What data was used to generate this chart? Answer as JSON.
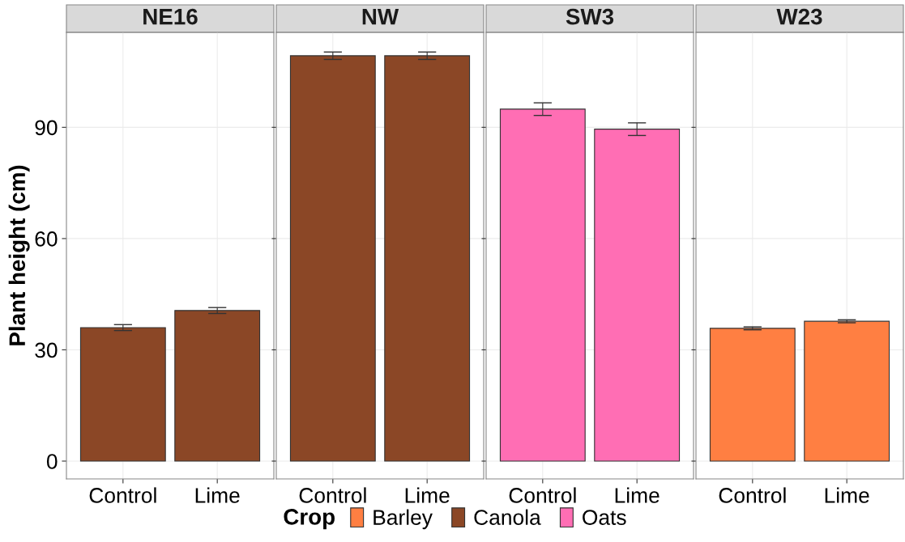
{
  "chart_data": [
    {
      "type": "bar",
      "title": "NE16",
      "ylabel": "Plant height (cm)",
      "categories": [
        "Control",
        "Lime"
      ],
      "series": [
        {
          "name": "Canola",
          "color": "#8b4726",
          "values": [
            36.0,
            40.6
          ],
          "errors": [
            0.8,
            0.8
          ]
        }
      ],
      "ylim": [
        -4.8,
        115.6
      ],
      "yticks": [
        0,
        30,
        60,
        90
      ],
      "grid": true,
      "legend": "bottom",
      "legend_title": "Crop"
    },
    {
      "type": "bar",
      "title": "NW",
      "categories": [
        "Control",
        "Lime"
      ],
      "series": [
        {
          "name": "Canola",
          "color": "#8b4726",
          "values": [
            109.3,
            109.3
          ],
          "errors": [
            1.0,
            1.0
          ]
        }
      ],
      "ylim": [
        -4.8,
        115.6
      ],
      "yticks": [
        0,
        30,
        60,
        90
      ],
      "grid": true,
      "tick_labels": "x"
    },
    {
      "type": "bar",
      "title": "SW3",
      "categories": [
        "Control",
        "Lime"
      ],
      "series": [
        {
          "name": "Oats",
          "color": "#ff6eb4",
          "values": [
            94.9,
            89.5
          ],
          "errors": [
            1.7,
            1.7
          ]
        }
      ],
      "ylim": [
        -4.8,
        115.6
      ],
      "yticks": [
        0,
        30,
        60,
        90
      ],
      "grid": true,
      "tick_labels": "x"
    },
    {
      "type": "bar",
      "title": "W23",
      "categories": [
        "Control",
        "Lime"
      ],
      "series": [
        {
          "name": "Barley",
          "color": "#ff7f42",
          "values": [
            35.8,
            37.7
          ],
          "errors": [
            0.4,
            0.4
          ]
        }
      ],
      "ylim": [
        -4.8,
        115.6
      ],
      "yticks": [
        0,
        30,
        60,
        90
      ],
      "grid": true,
      "tick_labels": "x"
    }
  ]
}
